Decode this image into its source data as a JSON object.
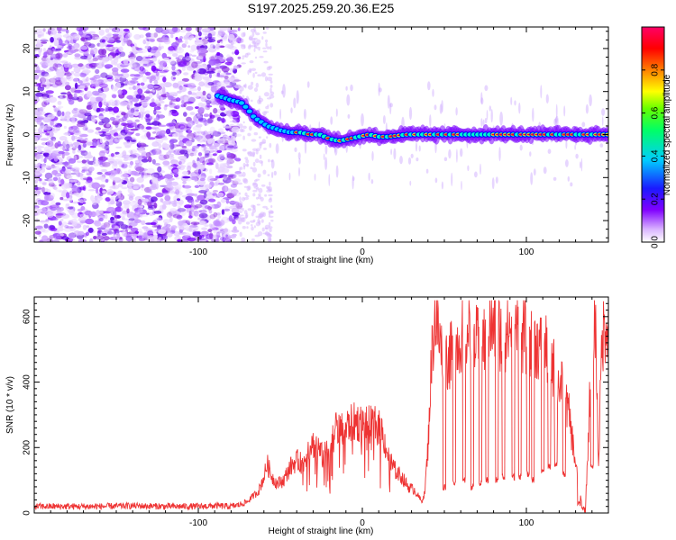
{
  "title": "S197.2025.259.20.36.E25",
  "chart_data": [
    {
      "type": "heatmap",
      "name": "spectrogram",
      "xlabel": "Height of straight line (km)",
      "ylabel": "Frequency (Hz)",
      "xlim": [
        -200,
        150
      ],
      "ylim": [
        -25,
        25
      ],
      "xticks": [
        -100,
        0,
        100
      ],
      "yticks": [
        -20,
        -10,
        0,
        10,
        20
      ],
      "colorbar": {
        "label": "Normalized spectral amplitude",
        "range": [
          0.0,
          1.0
        ],
        "ticks": [
          "0.0",
          "0.2",
          "0.4",
          "0.6",
          "0.8"
        ],
        "colors": [
          "#ffffff",
          "#cc99ff",
          "#8000ff",
          "#0000ff",
          "#00ffff",
          "#00ff00",
          "#ffff00",
          "#ff8000",
          "#ff0000",
          "#ff0080"
        ]
      },
      "ridge": {
        "x_km": [
          -88,
          -80,
          -74,
          -70,
          -66,
          -62,
          -58,
          -54,
          -50,
          -44,
          -38,
          -32,
          -26,
          -20,
          -14,
          -8,
          -2,
          4,
          10,
          16,
          22,
          28,
          40,
          60,
          80,
          100,
          120,
          150
        ],
        "freq_hz": [
          9,
          8,
          7.5,
          6,
          4,
          3,
          2,
          1.5,
          1,
          0.5,
          0.5,
          0,
          0,
          -1,
          -1.5,
          -1,
          -0.5,
          0,
          -0.5,
          -0.5,
          -0.2,
          0,
          0,
          0,
          0,
          0,
          0,
          0
        ]
      }
    },
    {
      "type": "line",
      "name": "snr",
      "xlabel": "Height of straight line (km)",
      "ylabel": "SNR (10 * v/v)",
      "xlim": [
        -200,
        150
      ],
      "ylim": [
        0,
        660
      ],
      "xticks": [
        -100,
        0,
        100
      ],
      "yticks": [
        0,
        200,
        400,
        600
      ],
      "color": "#ee3333",
      "x": [
        -200,
        -180,
        -160,
        -140,
        -120,
        -100,
        -90,
        -80,
        -75,
        -70,
        -66,
        -63,
        -60,
        -58,
        -55,
        -52,
        -48,
        -44,
        -40,
        -36,
        -32,
        -28,
        -24,
        -20,
        -16,
        -12,
        -8,
        -4,
        0,
        4,
        8,
        12,
        16,
        20,
        24,
        28,
        32,
        36,
        38,
        40,
        42,
        44,
        46,
        48,
        50,
        54,
        58,
        62,
        66,
        70,
        74,
        78,
        82,
        86,
        90,
        94,
        98,
        102,
        106,
        110,
        114,
        118,
        122,
        126,
        130,
        134,
        136,
        138,
        140,
        142,
        144,
        146,
        148,
        150
      ],
      "y": [
        20,
        20,
        20,
        22,
        20,
        20,
        22,
        20,
        25,
        35,
        55,
        70,
        110,
        150,
        110,
        90,
        100,
        140,
        160,
        150,
        210,
        210,
        170,
        200,
        260,
        250,
        270,
        280,
        270,
        270,
        270,
        250,
        170,
        130,
        110,
        80,
        70,
        35,
        60,
        200,
        450,
        600,
        560,
        500,
        470,
        480,
        520,
        560,
        540,
        520,
        530,
        560,
        560,
        540,
        560,
        560,
        540,
        520,
        520,
        500,
        490,
        420,
        380,
        300,
        150,
        15,
        10,
        260,
        560,
        600,
        150,
        520,
        580,
        600
      ],
      "drops": [
        {
          "x": 50,
          "y": 70
        },
        {
          "x": 56,
          "y": 80
        },
        {
          "x": 62,
          "y": 90
        },
        {
          "x": 67,
          "y": 70
        },
        {
          "x": 72,
          "y": 80
        },
        {
          "x": 76,
          "y": 90
        },
        {
          "x": 82,
          "y": 90
        },
        {
          "x": 86,
          "y": 100
        },
        {
          "x": 92,
          "y": 100
        },
        {
          "x": 96,
          "y": 100
        },
        {
          "x": 101,
          "y": 110
        },
        {
          "x": 104,
          "y": 90
        },
        {
          "x": 110,
          "y": 120
        },
        {
          "x": 114,
          "y": 130
        },
        {
          "x": 118,
          "y": 140
        },
        {
          "x": 123,
          "y": 110
        },
        {
          "x": 132,
          "y": 20
        },
        {
          "x": 140,
          "y": 130
        }
      ]
    }
  ]
}
